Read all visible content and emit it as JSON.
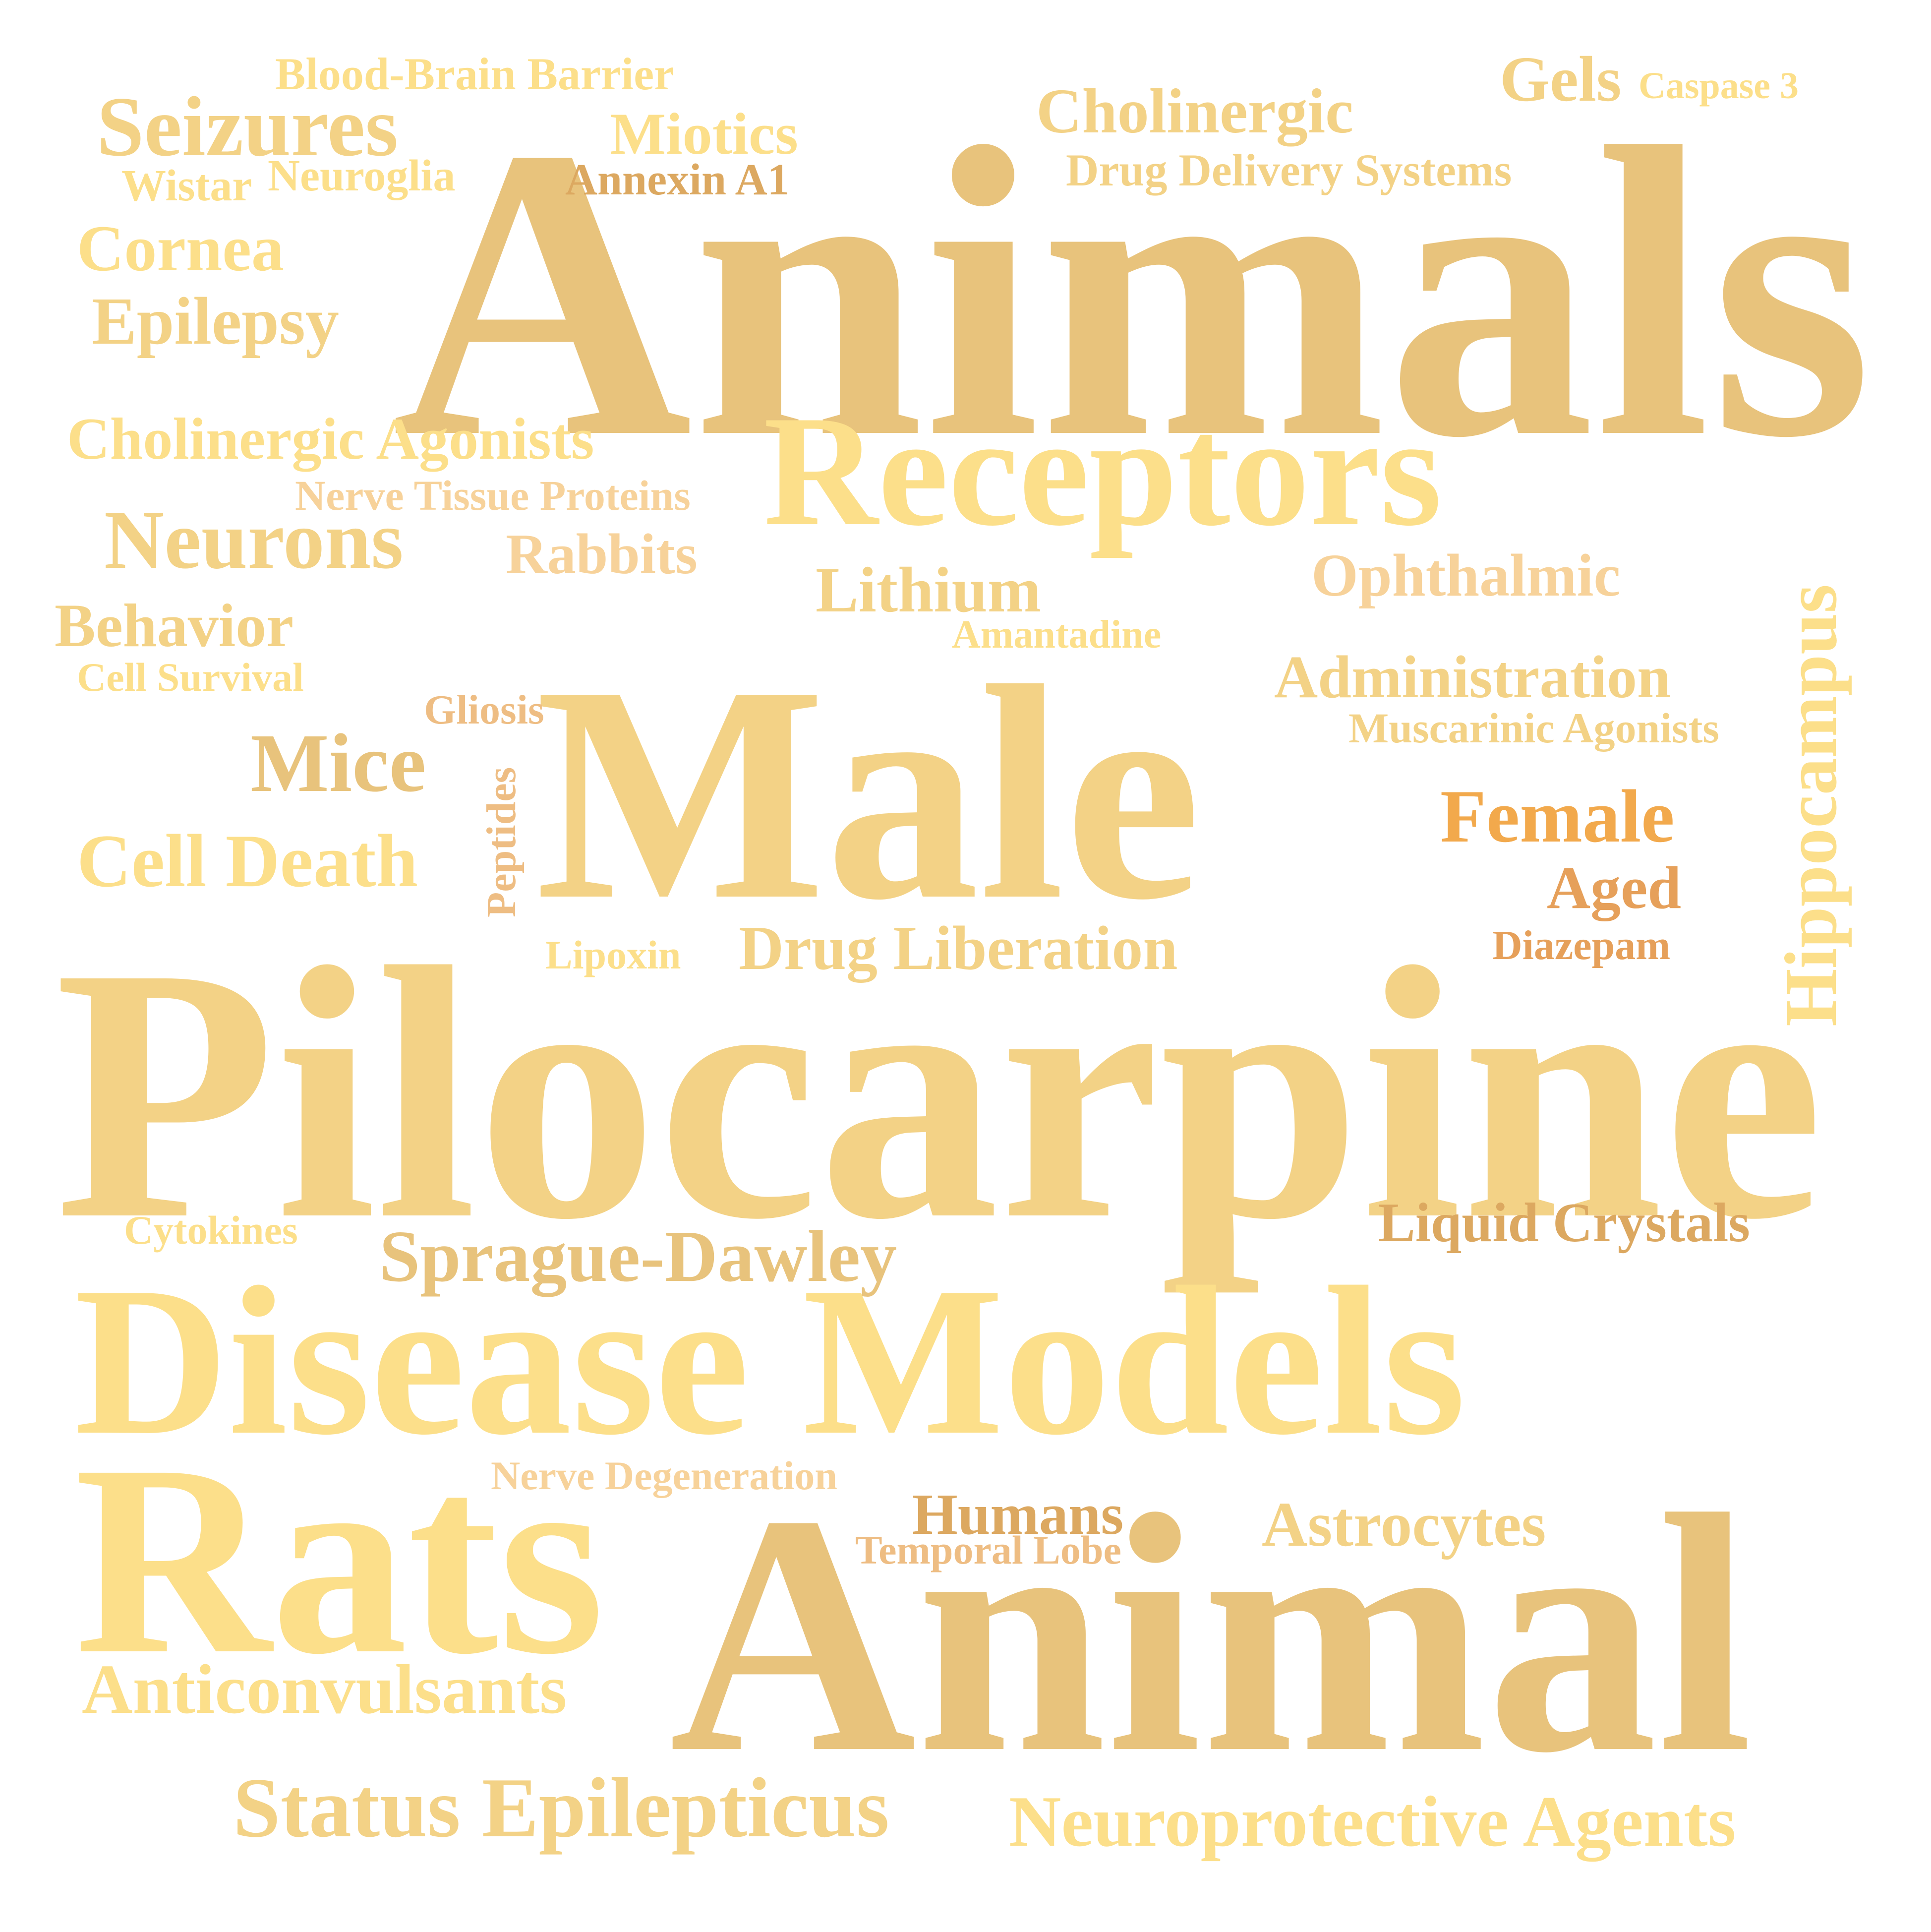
{
  "word_cloud": {
    "words": {
      "animals": {
        "text": "Animals",
        "color": "#E8C37C"
      },
      "pilocarpine": {
        "text": "Pilocarpine",
        "color": "#F3D286"
      },
      "male": {
        "text": "Male",
        "color": "#F3D286"
      },
      "disease_models": {
        "text": "Disease Models",
        "color": "#FCDF8A"
      },
      "animal": {
        "text": "Animal",
        "color": "#E8C37C"
      },
      "rats": {
        "text": "Rats",
        "color": "#FCDF8A"
      },
      "receptors": {
        "text": "Receptors",
        "color": "#FCDF8A"
      },
      "hippocampus": {
        "text": "Hippocampus",
        "color": "#FCDF8A"
      },
      "seizures": {
        "text": "Seizures",
        "color": "#F3D286"
      },
      "blood_brain_barrier": {
        "text": "Blood-Brain Barrier",
        "color": "#FCDF8A"
      },
      "miotics": {
        "text": "Miotics",
        "color": "#FCDF8A"
      },
      "cholinergic": {
        "text": "Cholinergic",
        "color": "#F3D286"
      },
      "gels": {
        "text": "Gels",
        "color": "#F3D286"
      },
      "caspase_3": {
        "text": "Caspase 3",
        "color": "#FCDF8A"
      },
      "wistar": {
        "text": "Wistar",
        "color": "#FCDF8A"
      },
      "neuroglia": {
        "text": "Neuroglia",
        "color": "#FCDF8A"
      },
      "annexin_a1": {
        "text": "Annexin A1",
        "color": "#DCA860"
      },
      "drug_delivery_systems": {
        "text": "Drug Delivery Systems",
        "color": "#F3D286"
      },
      "cornea": {
        "text": "Cornea",
        "color": "#FCDF8A"
      },
      "epilepsy": {
        "text": "Epilepsy",
        "color": "#F3D286"
      },
      "cholinergic_agonists": {
        "text": "Cholinergic Agonists",
        "color": "#FCDF8A"
      },
      "nerve_tissue_proteins": {
        "text": "Nerve Tissue Proteins",
        "color": "#F7D29A"
      },
      "neurons": {
        "text": "Neurons",
        "color": "#F3D286"
      },
      "rabbits": {
        "text": "Rabbits",
        "color": "#F7D29A"
      },
      "lithium": {
        "text": "Lithium",
        "color": "#F3D286"
      },
      "ophthalmic": {
        "text": "Ophthalmic",
        "color": "#F7D29A"
      },
      "behavior": {
        "text": "Behavior",
        "color": "#F3D286"
      },
      "cell_survival": {
        "text": "Cell Survival",
        "color": "#FCDF8A"
      },
      "amantadine": {
        "text": "Amantadine",
        "color": "#FCDF8A"
      },
      "administration": {
        "text": "Administration",
        "color": "#F3D286"
      },
      "muscarinic_agonists": {
        "text": "Muscarinic Agonists",
        "color": "#F3D286"
      },
      "gliosis": {
        "text": "Gliosis",
        "color": "#EEBD83"
      },
      "mice": {
        "text": "Mice",
        "color": "#E8C37C"
      },
      "peptides": {
        "text": "Peptides",
        "color": "#EEBD83"
      },
      "female": {
        "text": "Female",
        "color": "#F2A94C"
      },
      "cell_death": {
        "text": "Cell Death",
        "color": "#FCDF8A"
      },
      "aged": {
        "text": "Aged",
        "color": "#E6A05A"
      },
      "diazepam": {
        "text": "Diazepam",
        "color": "#E6A05A"
      },
      "lipoxin": {
        "text": "Lipoxin",
        "color": "#FCDF8A"
      },
      "drug_liberation": {
        "text": "Drug Liberation",
        "color": "#F3D286"
      },
      "cytokines": {
        "text": "Cytokines",
        "color": "#FCDF8A"
      },
      "sprague_dawley": {
        "text": "Sprague-Dawley",
        "color": "#E8C37C"
      },
      "liquid_crystals": {
        "text": "Liquid Crystals",
        "color": "#DCA860"
      },
      "nerve_degeneration": {
        "text": "Nerve Degeneration",
        "color": "#F7D29A"
      },
      "humans": {
        "text": "Humans",
        "color": "#DCA860"
      },
      "temporal_lobe": {
        "text": "Temporal Lobe",
        "color": "#EEBD83"
      },
      "astrocytes": {
        "text": "Astrocytes",
        "color": "#F3D286"
      },
      "anticonvulsants": {
        "text": "Anticonvulsants",
        "color": "#FCDF8A"
      },
      "status_epilepticus": {
        "text": "Status Epilepticus",
        "color": "#F3D286"
      },
      "neuroprotective_agents": {
        "text": "Neuroprotective Agents",
        "color": "#FCDF8A"
      }
    }
  }
}
